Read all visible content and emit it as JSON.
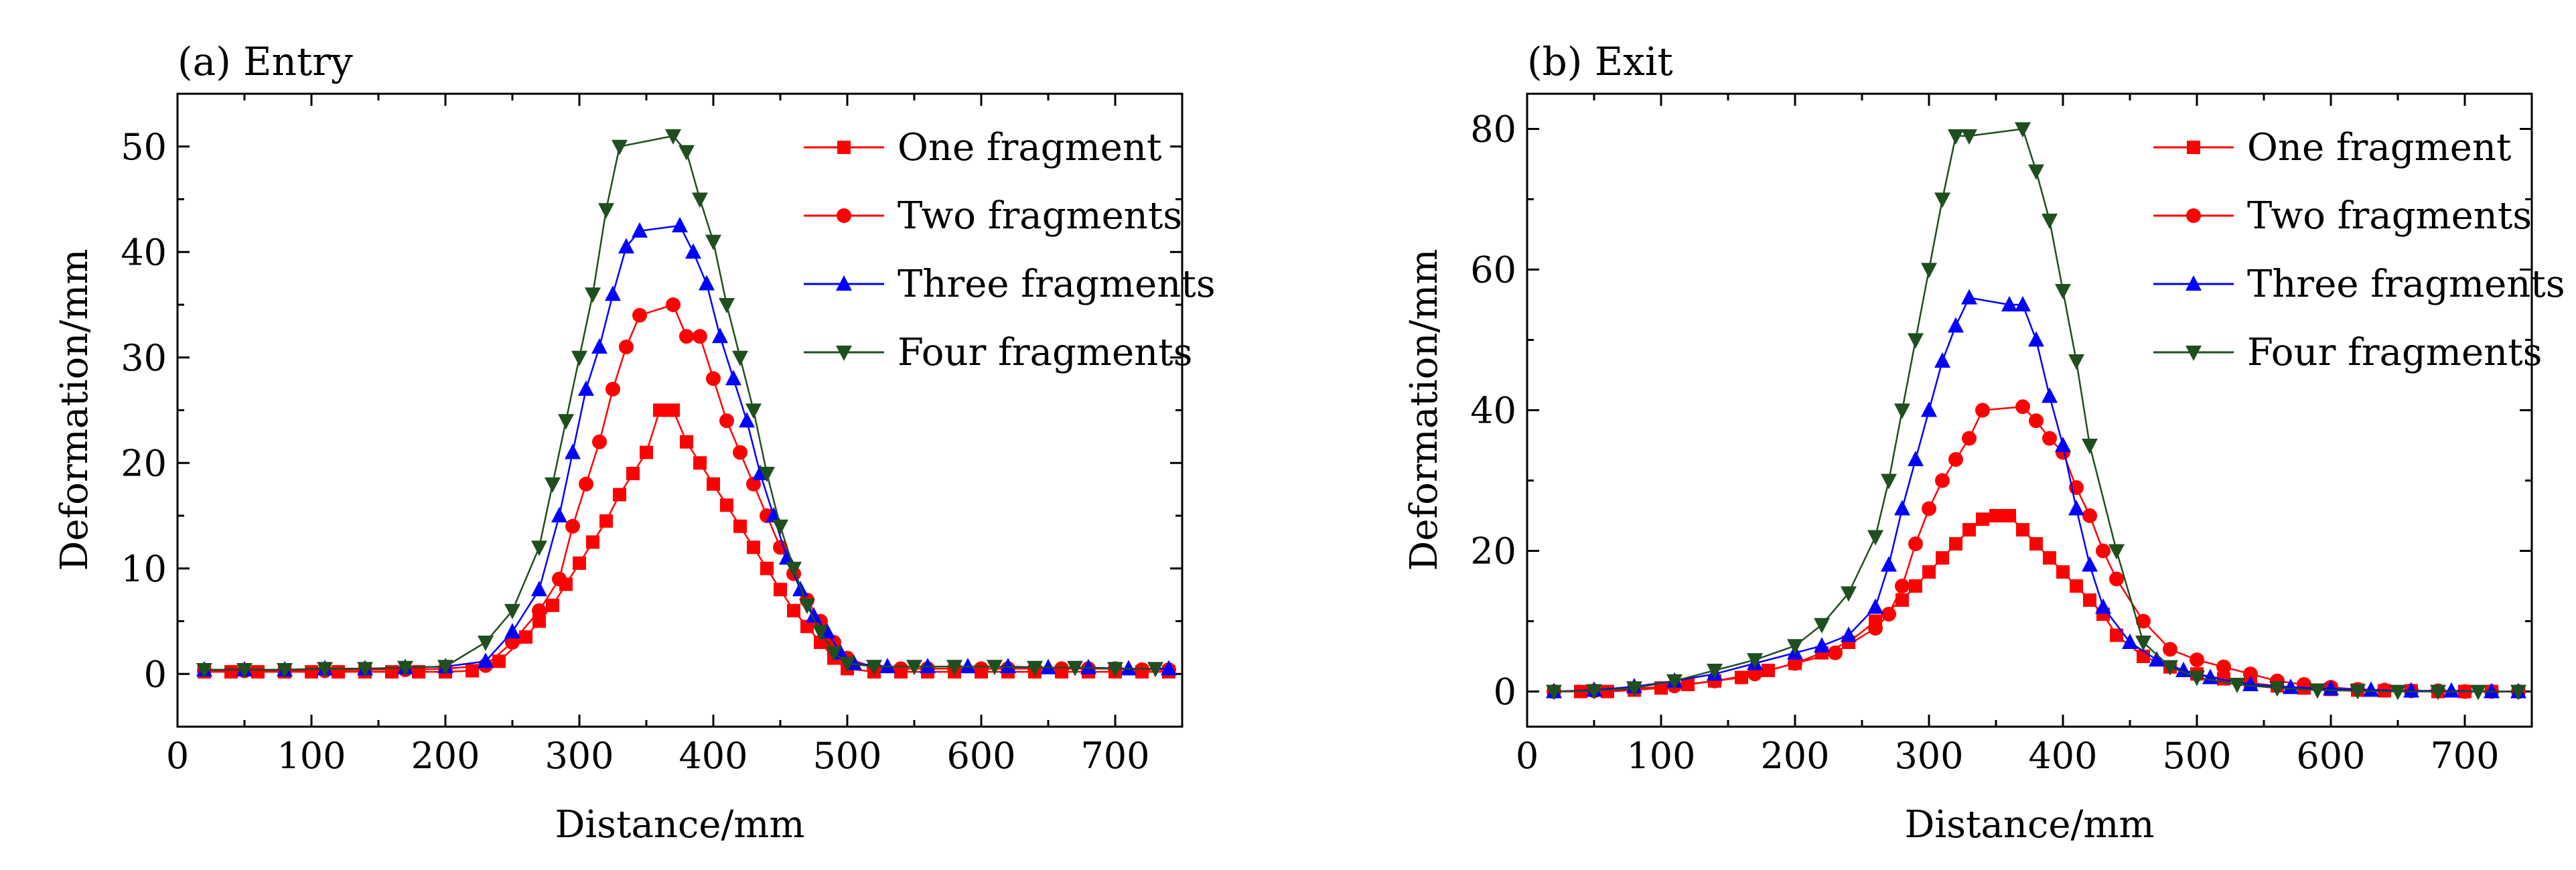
{
  "chart_data": [
    {
      "type": "line",
      "title": "(a) Entry",
      "xlabel": "Distance/mm",
      "ylabel": "Deformation/mm",
      "xlim": [
        0,
        750
      ],
      "ylim": [
        -5,
        55
      ],
      "xticks": [
        0,
        100,
        200,
        300,
        400,
        500,
        600,
        700
      ],
      "yticks": [
        0,
        10,
        20,
        30,
        40,
        50
      ],
      "grid": false,
      "legend_position": "top-right",
      "series": [
        {
          "name": "One fragment",
          "color": "#ff0000",
          "marker": "square",
          "x": [
            20,
            40,
            60,
            80,
            100,
            120,
            140,
            160,
            180,
            200,
            220,
            240,
            260,
            270,
            280,
            290,
            300,
            310,
            320,
            330,
            340,
            350,
            360,
            370,
            380,
            390,
            400,
            410,
            420,
            430,
            440,
            450,
            460,
            470,
            480,
            490,
            500,
            520,
            540,
            560,
            580,
            600,
            620,
            640,
            660,
            680,
            700,
            720,
            740
          ],
          "y": [
            0.2,
            0.2,
            0.2,
            0.2,
            0.2,
            0.2,
            0.2,
            0.2,
            0.2,
            0.2,
            0.3,
            1.2,
            3.5,
            5,
            6.5,
            8.5,
            10.5,
            12.5,
            14.5,
            17,
            19,
            21,
            25,
            25,
            22,
            20,
            18,
            16,
            14,
            12,
            10,
            8,
            6,
            4.5,
            3,
            1.5,
            0.5,
            0.2,
            0.2,
            0.2,
            0.2,
            0.2,
            0.2,
            0.2,
            0.2,
            0.2,
            0.2,
            0.2,
            0.2
          ]
        },
        {
          "name": "Two fragments",
          "color": "#ff0000",
          "marker": "circle",
          "x": [
            20,
            50,
            80,
            110,
            140,
            170,
            200,
            230,
            250,
            270,
            285,
            295,
            305,
            315,
            325,
            335,
            345,
            370,
            380,
            390,
            400,
            410,
            420,
            430,
            440,
            450,
            460,
            470,
            480,
            490,
            500,
            520,
            540,
            560,
            580,
            600,
            620,
            640,
            660,
            680,
            700,
            720,
            740
          ],
          "y": [
            0.3,
            0.3,
            0.3,
            0.3,
            0.4,
            0.4,
            0.5,
            0.8,
            3,
            6,
            9,
            14,
            18,
            22,
            27,
            31,
            34,
            35,
            32,
            32,
            28,
            24,
            21,
            18,
            15,
            12,
            9.5,
            7,
            5,
            3,
            1.5,
            0.6,
            0.5,
            0.5,
            0.5,
            0.5,
            0.5,
            0.5,
            0.5,
            0.5,
            0.5,
            0.4,
            0.4
          ]
        },
        {
          "name": "Three fragments",
          "color": "#0000ff",
          "marker": "triangle-up",
          "x": [
            20,
            50,
            80,
            110,
            140,
            170,
            200,
            230,
            250,
            270,
            285,
            295,
            305,
            315,
            325,
            335,
            345,
            375,
            385,
            395,
            405,
            415,
            425,
            435,
            445,
            455,
            465,
            475,
            485,
            495,
            505,
            530,
            560,
            590,
            620,
            650,
            680,
            710,
            740
          ],
          "y": [
            0.4,
            0.4,
            0.4,
            0.5,
            0.5,
            0.6,
            0.7,
            1.2,
            4,
            8,
            15,
            21,
            27,
            31,
            36,
            40.5,
            42,
            42.5,
            40,
            37,
            32,
            28,
            24,
            19,
            15,
            11,
            8,
            5.5,
            4,
            2,
            1,
            0.7,
            0.7,
            0.7,
            0.7,
            0.6,
            0.6,
            0.5,
            0.5
          ]
        },
        {
          "name": "Four fragments",
          "color": "#1f4f1f",
          "marker": "triangle-down",
          "x": [
            20,
            50,
            80,
            110,
            140,
            170,
            200,
            230,
            250,
            270,
            280,
            290,
            300,
            310,
            320,
            330,
            370,
            380,
            390,
            400,
            410,
            420,
            430,
            440,
            450,
            460,
            470,
            480,
            490,
            500,
            520,
            550,
            580,
            610,
            640,
            670,
            700,
            730
          ],
          "y": [
            0.4,
            0.4,
            0.4,
            0.5,
            0.5,
            0.6,
            0.7,
            3,
            6,
            12,
            18,
            24,
            30,
            36,
            44,
            50,
            51,
            49.5,
            45,
            41,
            35,
            30,
            25,
            19,
            14,
            10,
            6.5,
            4,
            2,
            1,
            0.7,
            0.7,
            0.7,
            0.7,
            0.6,
            0.6,
            0.5,
            0.5
          ]
        }
      ]
    },
    {
      "type": "line",
      "title": "(b) Exit",
      "xlabel": "Distance/mm",
      "ylabel": "Deformation/mm",
      "xlim": [
        0,
        750
      ],
      "ylim": [
        -5,
        85
      ],
      "xticks": [
        0,
        100,
        200,
        300,
        400,
        500,
        600,
        700
      ],
      "yticks": [
        0,
        20,
        40,
        60,
        80
      ],
      "grid": false,
      "legend_position": "top-right",
      "series": [
        {
          "name": "One fragment",
          "color": "#ff0000",
          "marker": "square",
          "x": [
            20,
            40,
            60,
            80,
            100,
            120,
            140,
            160,
            180,
            200,
            220,
            240,
            260,
            280,
            290,
            300,
            310,
            320,
            330,
            340,
            350,
            360,
            370,
            380,
            390,
            400,
            410,
            420,
            430,
            440,
            460,
            480,
            500,
            520,
            540,
            560,
            580,
            600,
            620,
            640,
            660,
            680,
            700,
            720,
            740
          ],
          "y": [
            0,
            0,
            0,
            0.2,
            0.5,
            1,
            1.5,
            2,
            3,
            4,
            5.5,
            7,
            10,
            13,
            15,
            17,
            19,
            21,
            23,
            24.5,
            25,
            25,
            23,
            21,
            19,
            17,
            15,
            13,
            11,
            8,
            5,
            3.5,
            2.5,
            1.8,
            1.2,
            0.8,
            0.5,
            0.3,
            0.2,
            0.1,
            0.1,
            0,
            0,
            0,
            0
          ]
        },
        {
          "name": "Two fragments",
          "color": "#ff0000",
          "marker": "circle",
          "x": [
            20,
            50,
            80,
            110,
            140,
            170,
            200,
            230,
            260,
            270,
            280,
            290,
            300,
            310,
            320,
            330,
            340,
            370,
            380,
            390,
            400,
            410,
            420,
            430,
            440,
            460,
            480,
            500,
            520,
            540,
            560,
            580,
            600,
            620,
            640,
            660,
            680,
            700,
            720,
            740
          ],
          "y": [
            0,
            0.1,
            0.4,
            0.8,
            1.5,
            2.5,
            4,
            5.5,
            9,
            11,
            15,
            21,
            26,
            30,
            33,
            36,
            40,
            40.5,
            38.5,
            36,
            34,
            29,
            25,
            20,
            16,
            10,
            6,
            4.5,
            3.5,
            2.5,
            1.5,
            1,
            0.6,
            0.3,
            0.2,
            0.1,
            0.1,
            0,
            0,
            0
          ]
        },
        {
          "name": "Three fragments",
          "color": "#0000ff",
          "marker": "triangle-up",
          "x": [
            20,
            50,
            80,
            110,
            140,
            170,
            200,
            220,
            240,
            260,
            270,
            280,
            290,
            300,
            310,
            320,
            330,
            360,
            370,
            380,
            390,
            400,
            410,
            420,
            430,
            450,
            470,
            490,
            510,
            540,
            570,
            600,
            630,
            660,
            690,
            720,
            740
          ],
          "y": [
            0,
            0.2,
            0.7,
            1.5,
            2.5,
            4,
            5.5,
            6.5,
            8,
            12,
            18,
            26,
            33,
            40,
            47,
            52,
            56,
            55,
            55,
            50,
            42,
            35,
            26,
            18,
            12,
            7,
            4.5,
            3,
            2,
            1,
            0.6,
            0.4,
            0.2,
            0.1,
            0.1,
            0,
            0
          ]
        },
        {
          "name": "Four fragments",
          "color": "#1f4f1f",
          "marker": "triangle-down",
          "x": [
            20,
            50,
            80,
            110,
            140,
            170,
            200,
            220,
            240,
            260,
            270,
            280,
            290,
            300,
            310,
            320,
            330,
            370,
            380,
            390,
            400,
            410,
            420,
            440,
            460,
            480,
            500,
            530,
            560,
            590,
            620,
            650,
            680,
            710,
            740
          ],
          "y": [
            0,
            0.1,
            0.5,
            1.5,
            3,
            4.5,
            6.5,
            9.5,
            14,
            22,
            30,
            40,
            50,
            60,
            70,
            79,
            79,
            80,
            74,
            67,
            57,
            47,
            35,
            20,
            7,
            3.5,
            2,
            1,
            0.5,
            0.2,
            0.1,
            0,
            0,
            0,
            0
          ]
        }
      ]
    }
  ]
}
